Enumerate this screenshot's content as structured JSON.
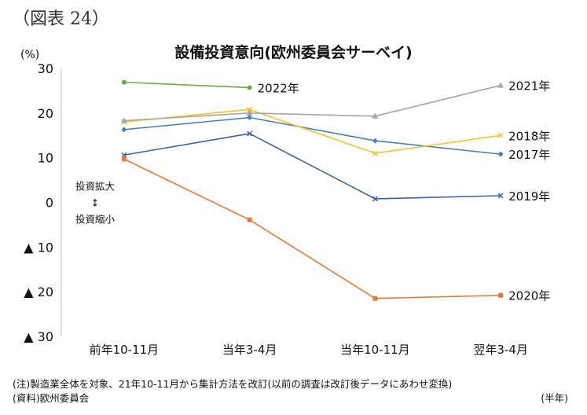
{
  "figure_label": "（図表 24）",
  "y_unit": "(%)",
  "chart_data": {
    "type": "line",
    "title": "設備投資意向(欧州委員会サーベイ)",
    "xlabel": "",
    "ylabel": "",
    "categories": [
      "前年10-11月",
      "当年3-4月",
      "当年10-11月",
      "翌年3-4月"
    ],
    "ylim": [
      -30,
      30
    ],
    "yticks": [
      30,
      20,
      10,
      0,
      -10,
      -20,
      -30
    ],
    "ytick_labels": [
      "30",
      "20",
      "10",
      "0",
      "▲ 10",
      "▲ 20",
      "▲ 30"
    ],
    "grid": "horizontal-none",
    "annotations": [
      "投資拡大",
      "↕",
      "投資縮小"
    ],
    "series": [
      {
        "name": "2017年",
        "color": "#4a7fb8",
        "marker": "diamond",
        "values": [
          16.3,
          19.0,
          13.8,
          10.8
        ]
      },
      {
        "name": "2018年",
        "color": "#f2c12e",
        "marker": "x",
        "values": [
          18.0,
          20.8,
          11.0,
          15.0
        ]
      },
      {
        "name": "2019年",
        "color": "#3c63a3",
        "marker": "x",
        "values": [
          10.6,
          15.4,
          0.8,
          1.5
        ]
      },
      {
        "name": "2020年",
        "color": "#e8793a",
        "marker": "square",
        "values": [
          9.7,
          -3.9,
          -21.5,
          -20.8
        ]
      },
      {
        "name": "2021年",
        "color": "#a5a5a5",
        "marker": "triangle",
        "values": [
          18.3,
          20.0,
          19.3,
          26.2
        ]
      },
      {
        "name": "2022年",
        "color": "#70a845",
        "marker": "circle",
        "values": [
          26.9,
          25.7,
          null,
          null
        ]
      }
    ]
  },
  "notes": {
    "note1": "(注)製造業全体を対象、21年10-11月から集計方法を改訂(以前の調査は改訂後データにあわせ変換)",
    "note2": "(資料)欧州委員会",
    "x_unit": "(半年)"
  }
}
